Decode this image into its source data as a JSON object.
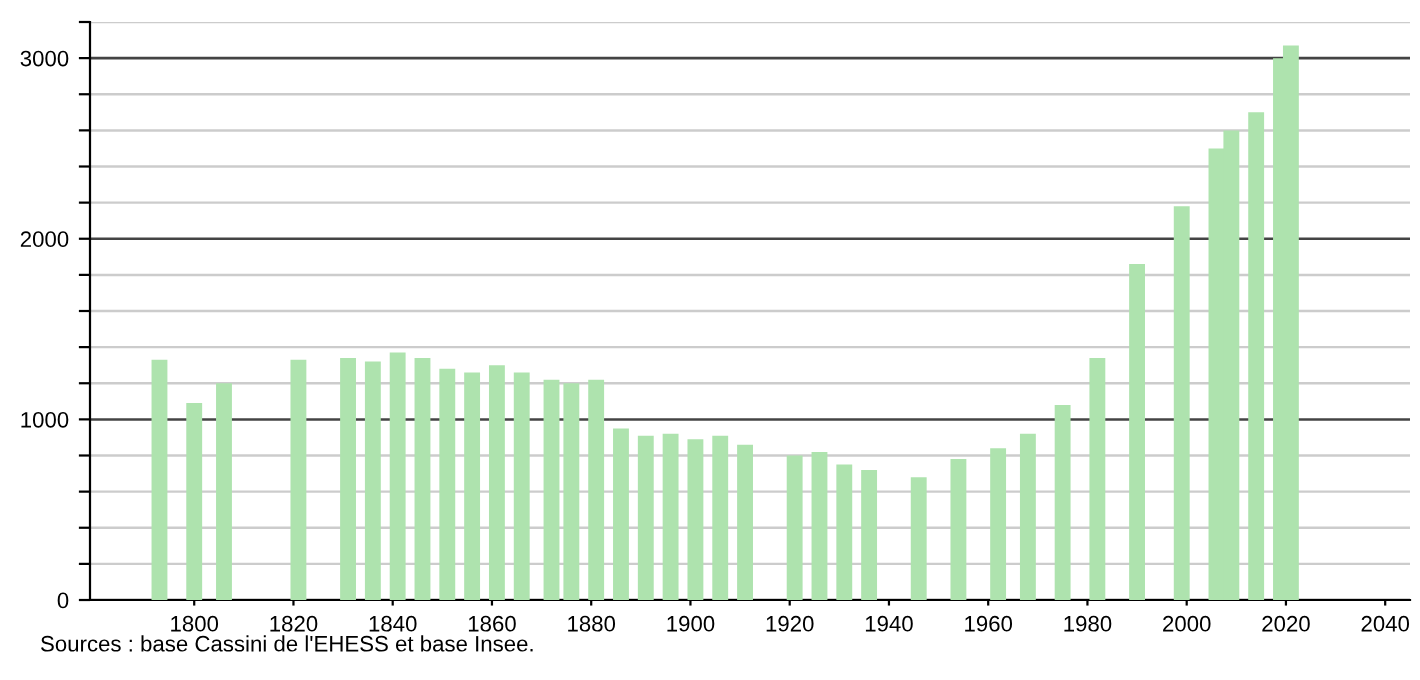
{
  "chart_data": {
    "type": "bar",
    "x": [
      1793,
      1800,
      1806,
      1821,
      1831,
      1836,
      1841,
      1846,
      1851,
      1856,
      1861,
      1866,
      1872,
      1876,
      1881,
      1886,
      1891,
      1896,
      1901,
      1906,
      1911,
      1921,
      1926,
      1931,
      1936,
      1946,
      1954,
      1962,
      1968,
      1975,
      1982,
      1990,
      1999,
      2006,
      2009,
      2014,
      2019,
      2021
    ],
    "values": [
      1330,
      1090,
      1200,
      1330,
      1340,
      1320,
      1370,
      1340,
      1280,
      1260,
      1300,
      1260,
      1220,
      1200,
      1220,
      950,
      910,
      920,
      890,
      910,
      860,
      800,
      820,
      750,
      720,
      680,
      780,
      840,
      920,
      1080,
      1340,
      1860,
      2180,
      2500,
      2600,
      2700,
      3000,
      3070
    ],
    "color": "#aee3ae",
    "xlim": [
      1779,
      2045
    ],
    "xticks": [
      1800,
      1820,
      1840,
      1860,
      1880,
      1900,
      1920,
      1940,
      1960,
      1980,
      2000,
      2020,
      2040
    ],
    "ylim": [
      0,
      3200
    ],
    "yticks": [
      0,
      {
        "value": 200,
        "label": null
      },
      {
        "value": 400,
        "label": null
      },
      {
        "value": 600,
        "label": null
      },
      {
        "value": 800,
        "label": null
      },
      1000,
      {
        "value": 1200,
        "label": null
      },
      {
        "value": 1400,
        "label": null
      },
      {
        "value": 1600,
        "label": null
      },
      {
        "value": 1800,
        "label": null
      },
      2000,
      {
        "value": 2200,
        "label": null
      },
      {
        "value": 2400,
        "label": null
      },
      {
        "value": 2600,
        "label": null
      },
      {
        "value": 2800,
        "label": null
      },
      3000,
      {
        "value": 3200,
        "label": null
      }
    ],
    "grid": "y",
    "annotations": [
      "Sources : base Cassini de l'EHESS et base Insee."
    ]
  }
}
